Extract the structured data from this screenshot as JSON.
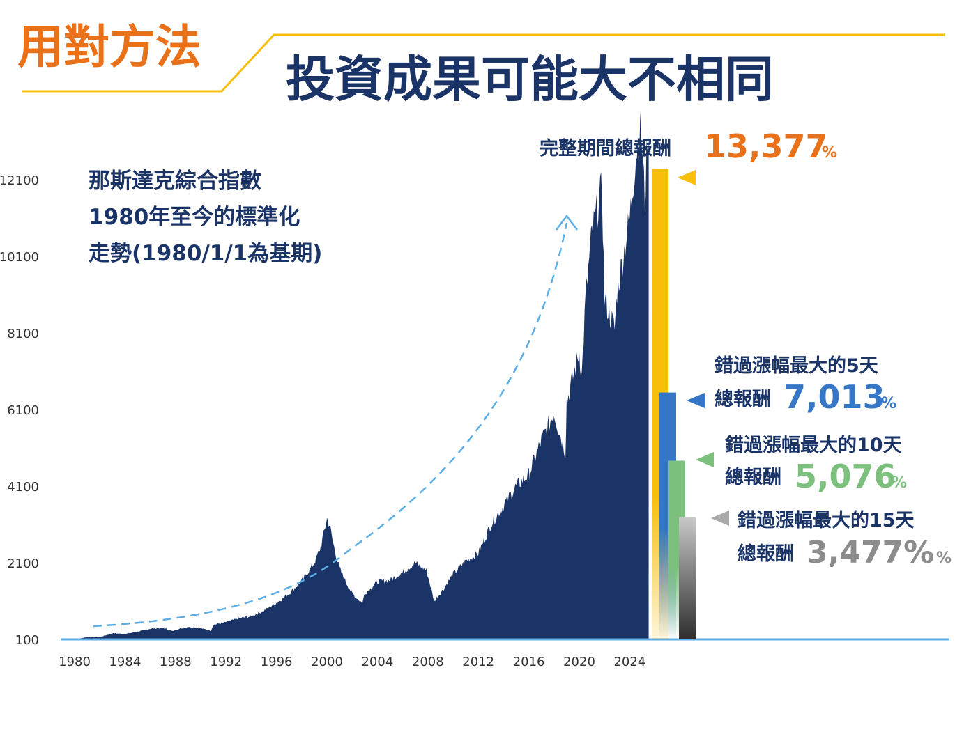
{
  "header": {
    "tag": "用對方法",
    "title": "投資成果可能大不相同"
  },
  "colors": {
    "orange": "#E8711A",
    "navy": "#1B3468",
    "gold": "#F7BF0C",
    "blue": "#3577C6",
    "green": "#7CC07E",
    "gray": "#8C8C8C",
    "axis_line": "#5BAEE6",
    "trend_arrow": "#5BAEE6"
  },
  "chart_data": {
    "type": "area",
    "description_lines": [
      "那斯達克綜合指數",
      "1980年至今的標準化",
      "走勢(1980/1/1為基期)"
    ],
    "ylim": [
      100,
      12100
    ],
    "y_ticks": [
      100,
      2100,
      4100,
      6100,
      8100,
      10100,
      12100
    ],
    "y_tick_labels": [
      "100",
      "2100",
      "4100",
      "6100",
      "8100",
      "10100",
      "12100"
    ],
    "xlim": [
      1980,
      2025.6
    ],
    "x_ticks": [
      1980,
      1984,
      1988,
      1992,
      1996,
      2000,
      2004,
      2008,
      2012,
      2016,
      2020,
      2024
    ],
    "x_tick_labels": [
      "1980",
      "1984",
      "1988",
      "1992",
      "1996",
      "2000",
      "2004",
      "2008",
      "2012",
      "2016",
      "2020",
      "2024"
    ],
    "series": [
      {
        "x": [
          1980,
          1981,
          1982,
          1983,
          1984,
          1985,
          1986,
          1987,
          1987.8,
          1988,
          1989,
          1990,
          1990.8,
          1991,
          1992,
          1993,
          1994,
          1995,
          1996,
          1997,
          1998,
          1999,
          1999.5,
          2000,
          2000.2,
          2000.5,
          2001,
          2001.5,
          2002,
          2002.8,
          2003,
          2004,
          2005,
          2006,
          2007,
          2007.9,
          2008.5,
          2009.2,
          2010,
          2011,
          2012,
          2013,
          2014,
          2015,
          2016,
          2017,
          2018,
          2018.9,
          2019,
          2020,
          2020.2,
          2020.5,
          2021,
          2021.8,
          2022,
          2022.8,
          2023,
          2024,
          2024.5,
          2024.9,
          2025.2,
          2025.4,
          2025.5
        ],
        "y": [
          100,
          160,
          160,
          260,
          240,
          300,
          380,
          400,
          310,
          350,
          430,
          390,
          330,
          480,
          550,
          650,
          700,
          850,
          1050,
          1300,
          1620,
          2100,
          2500,
          3250,
          3100,
          2600,
          1950,
          1600,
          1300,
          1050,
          1300,
          1600,
          1650,
          1850,
          2100,
          1900,
          1100,
          1400,
          1800,
          2150,
          2350,
          3100,
          3600,
          4100,
          4400,
          5300,
          6000,
          5000,
          6300,
          7600,
          7000,
          9000,
          10700,
          11900,
          9000,
          8200,
          9200,
          11100,
          12800,
          13450,
          11500,
          13200,
          12900
        ]
      }
    ],
    "return_bars": [
      {
        "label": "完整期間總報酬",
        "value": 13377,
        "value_text": "13,377",
        "unit": "%",
        "color": "#F7BF0C"
      },
      {
        "label_line1": "錯過漲幅最大的5天",
        "label_line2": "總報酬",
        "value": 7013,
        "value_text": "7,013",
        "unit": "%",
        "color": "#3577C6"
      },
      {
        "label_line1": "錯過漲幅最大的10天",
        "label_line2": "總報酬",
        "value": 5076,
        "value_text": "5,076",
        "unit": "%",
        "color": "#7CC07E"
      },
      {
        "label_line1": "錯過漲幅最大的15天",
        "label_line2": "總報酬",
        "value": 3477,
        "value_text": "3,477%",
        "unit": "%",
        "color": "#8C8C8C"
      }
    ]
  }
}
